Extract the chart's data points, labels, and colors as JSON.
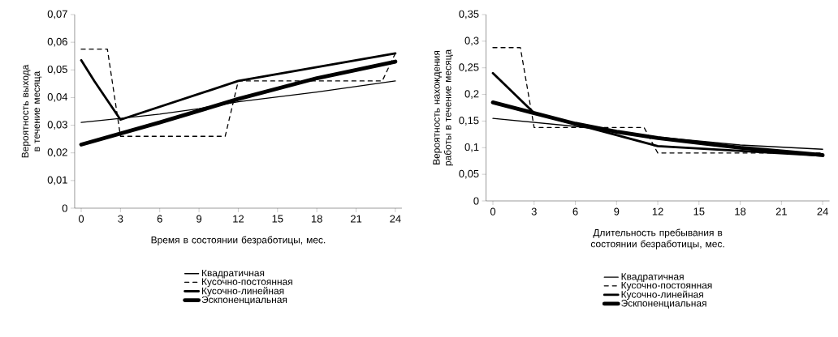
{
  "chart_data": [
    {
      "type": "line",
      "xlabel": "Время в состоянии безработицы, мес.",
      "ylabel": "Вероятность выхода в течение месяца",
      "xlim": [
        -0.5,
        24.5
      ],
      "ylim": [
        0,
        0.07
      ],
      "xticks": [
        0,
        3,
        6,
        9,
        12,
        15,
        18,
        21,
        24
      ],
      "yticks": [
        0,
        {
          "value": 0.01,
          "label": "0,01"
        },
        {
          "value": 0.02,
          "label": "0,02"
        },
        {
          "value": 0.03,
          "label": "0,03"
        },
        {
          "value": 0.04,
          "label": "0,04"
        },
        {
          "value": 0.05,
          "label": "0,05"
        },
        {
          "value": 0.06,
          "label": "0,06"
        },
        {
          "value": 0.07,
          "label": "0,07"
        }
      ],
      "legend": "bottom",
      "series": [
        {
          "name": "Квадратичная",
          "color": "#000000",
          "line_style": "solid",
          "x": [
            0,
            3,
            6,
            9,
            12,
            18,
            24
          ],
          "values": [
            0.031,
            0.0325,
            0.034,
            0.036,
            0.0385,
            0.042,
            0.046
          ]
        },
        {
          "name": "Кусочно-постоянная",
          "color": "#000000",
          "line_style": "dashed",
          "x": [
            0,
            2,
            3,
            11,
            12,
            23,
            24
          ],
          "values": [
            0.0575,
            0.0575,
            0.026,
            0.026,
            0.046,
            0.046,
            0.056
          ]
        },
        {
          "name": "Кусочно-линейная",
          "color": "#000000",
          "line_style": "solid",
          "x": [
            0,
            1,
            3,
            12,
            24
          ],
          "values": [
            0.0535,
            0.046,
            0.032,
            0.046,
            0.056
          ]
        },
        {
          "name": "Эскпоненциальная",
          "color": "#000000",
          "line_style": "solid",
          "x": [
            0,
            6,
            12,
            18,
            24
          ],
          "values": [
            0.023,
            0.031,
            0.0395,
            0.047,
            0.053
          ]
        }
      ]
    },
    {
      "type": "line",
      "xlabel": "Длительность пребывания в состоянии безработицы, мес.",
      "ylabel": "Вероятность нахождения работы в течение месяца",
      "xlim": [
        -0.5,
        24.5
      ],
      "ylim": [
        0,
        0.35
      ],
      "xticks": [
        0,
        3,
        6,
        9,
        12,
        15,
        18,
        21,
        24
      ],
      "yticks": [
        0,
        {
          "value": 0.05,
          "label": "0,05"
        },
        {
          "value": 0.1,
          "label": "0,1"
        },
        {
          "value": 0.15,
          "label": "0,15"
        },
        {
          "value": 0.2,
          "label": "0,2"
        },
        {
          "value": 0.25,
          "label": "0,25"
        },
        {
          "value": 0.3,
          "label": "0,3"
        },
        {
          "value": 0.35,
          "label": "0,35"
        }
      ],
      "legend": "bottom",
      "series": [
        {
          "name": "Квадратичная",
          "color": "#000000",
          "line_style": "solid",
          "x": [
            0,
            6,
            12,
            18,
            24
          ],
          "values": [
            0.155,
            0.14,
            0.12,
            0.105,
            0.097
          ]
        },
        {
          "name": "Кусочно-постоянная",
          "color": "#000000",
          "line_style": "dashed",
          "x": [
            0,
            2,
            3,
            11,
            12,
            24
          ],
          "values": [
            0.288,
            0.288,
            0.138,
            0.138,
            0.09,
            0.09
          ]
        },
        {
          "name": "Кусочно-линейная",
          "color": "#000000",
          "line_style": "solid",
          "x": [
            0,
            3,
            12,
            24
          ],
          "values": [
            0.24,
            0.165,
            0.103,
            0.085
          ]
        },
        {
          "name": "Эскпоненциальная",
          "color": "#000000",
          "line_style": "solid",
          "x": [
            0,
            3,
            6,
            9,
            12,
            18,
            24
          ],
          "values": [
            0.185,
            0.165,
            0.145,
            0.13,
            0.118,
            0.1,
            0.086
          ]
        }
      ]
    }
  ]
}
